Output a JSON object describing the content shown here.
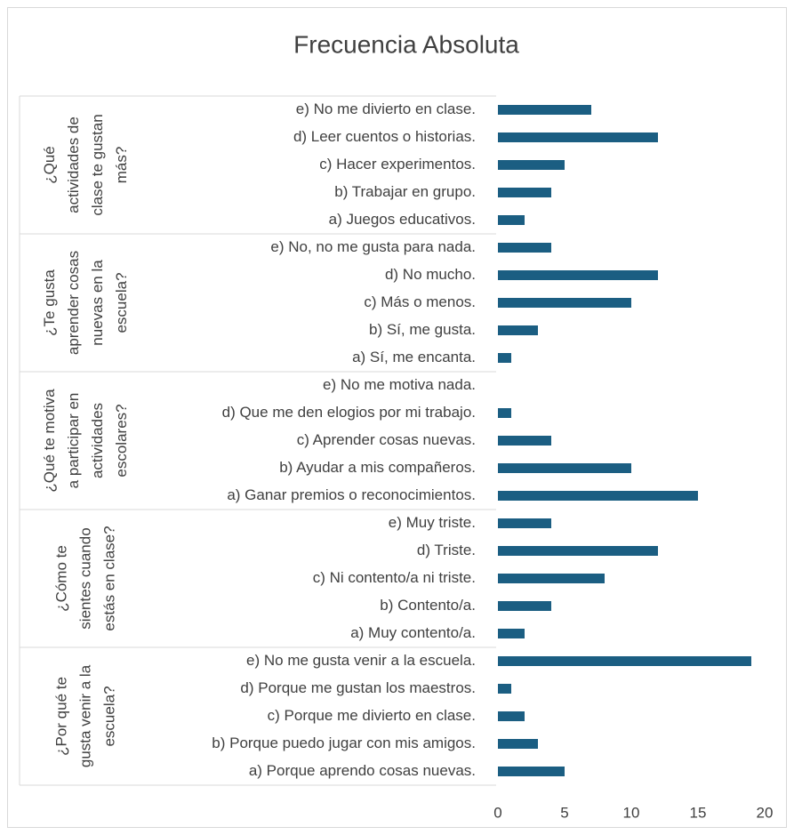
{
  "chart_data": {
    "type": "bar",
    "title": "Frecuencia Absoluta",
    "color": "#1b5e82",
    "xlim": [
      0,
      20
    ],
    "xticks": [
      0,
      5,
      10,
      15,
      20
    ],
    "groups": [
      {
        "label": [
          "¿Qué",
          "actividades de",
          "clase te gustan",
          "más?"
        ],
        "categories": [
          "e) No me divierto en clase.",
          "d) Leer cuentos o historias.",
          "c) Hacer experimentos.",
          "b) Trabajar en grupo.",
          "a) Juegos educativos."
        ],
        "values": [
          7,
          12,
          5,
          4,
          2
        ]
      },
      {
        "label": [
          "¿Te gusta",
          "aprender cosas",
          "nuevas en la",
          "escuela?"
        ],
        "categories": [
          "e) No, no me gusta para nada.",
          "d) No mucho.",
          "c) Más o menos.",
          "b) Sí, me gusta.",
          "a) Sí, me encanta."
        ],
        "values": [
          4,
          12,
          10,
          3,
          1
        ]
      },
      {
        "label": [
          "¿Qué te motiva",
          "a participar en",
          "actividades",
          "escolares?"
        ],
        "categories": [
          "e) No me motiva nada.",
          "d) Que me den elogios por mi trabajo.",
          "c) Aprender cosas nuevas.",
          "b) Ayudar a mis compañeros.",
          "a) Ganar premios o reconocimientos."
        ],
        "values": [
          0,
          1,
          4,
          10,
          15
        ]
      },
      {
        "label": [
          "¿Cómo te",
          "sientes cuando",
          "estás en clase?"
        ],
        "categories": [
          "e) Muy triste.",
          "d) Triste.",
          "c) Ni contento/a ni triste.",
          "b) Contento/a.",
          "a) Muy contento/a."
        ],
        "values": [
          4,
          12,
          8,
          4,
          2
        ]
      },
      {
        "label": [
          "¿Por qué te",
          "gusta venir a la",
          "escuela?"
        ],
        "categories": [
          "e) No me gusta venir a la escuela.",
          "d) Porque me gustan los maestros.",
          "c) Porque me divierto en clase.",
          "b) Porque puedo jugar con mis amigos.",
          "a) Porque aprendo cosas nuevas."
        ],
        "values": [
          19,
          1,
          2,
          3,
          5
        ]
      }
    ]
  }
}
